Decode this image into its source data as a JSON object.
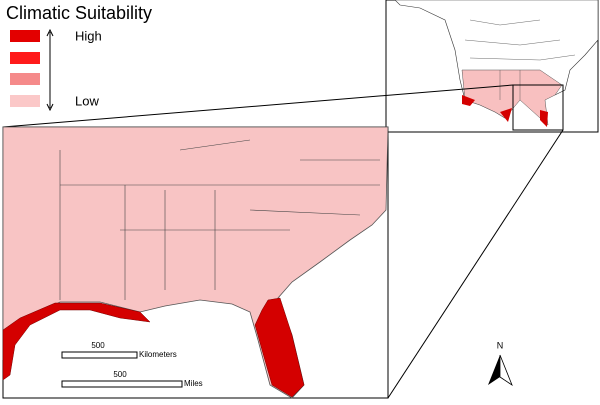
{
  "map": {
    "title": "Climatic Suitability",
    "legend": {
      "high_label": "High",
      "low_label": "Low",
      "colors": [
        "#e30000",
        "#ff1a1a",
        "#f58a8a",
        "#fbc8c8"
      ]
    },
    "scale_bars": [
      {
        "value": "500",
        "unit": "Kilometers"
      },
      {
        "value": "500",
        "unit": "Miles"
      }
    ],
    "north_label": "N"
  }
}
